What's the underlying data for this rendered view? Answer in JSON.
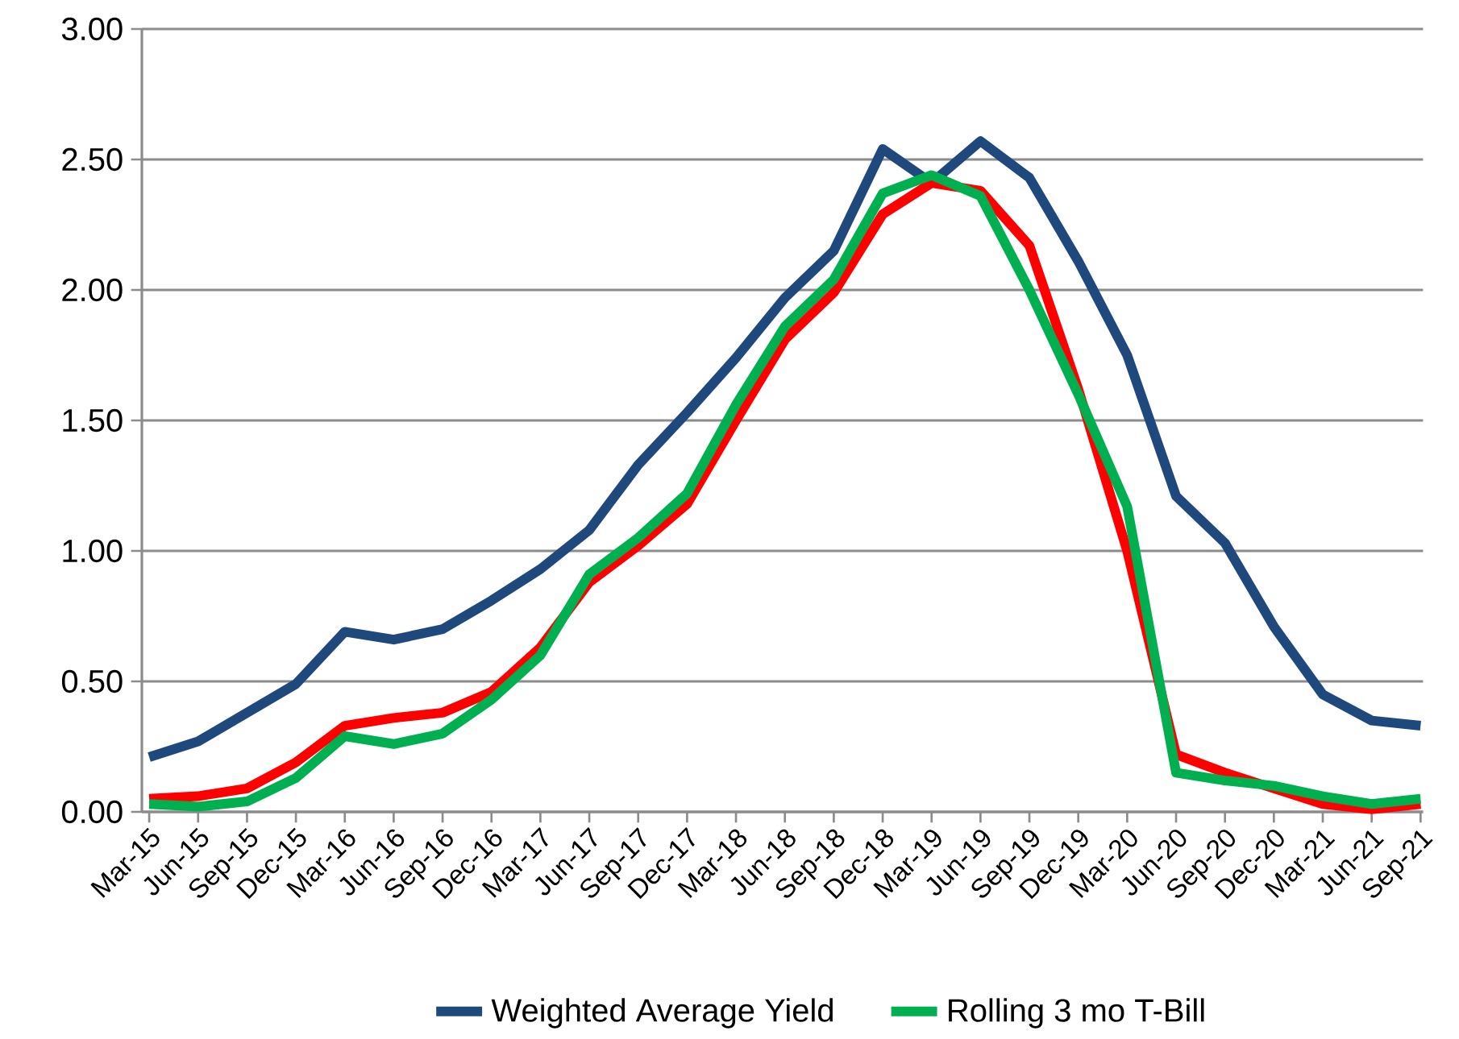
{
  "chart_data": {
    "type": "line",
    "categories": [
      "Mar-15",
      "Jun-15",
      "Sep-15",
      "Dec-15",
      "Mar-16",
      "Jun-16",
      "Sep-16",
      "Dec-16",
      "Mar-17",
      "Jun-17",
      "Sep-17",
      "Dec-17",
      "Mar-18",
      "Jun-18",
      "Sep-18",
      "Dec-18",
      "Mar-19",
      "Jun-19",
      "Sep-19",
      "Dec-19",
      "Mar-20",
      "Jun-20",
      "Sep-20",
      "Dec-20",
      "Mar-21",
      "Jun-21",
      "Sep-21"
    ],
    "series": [
      {
        "name": "Weighted Average Yield",
        "color": "#1f497d",
        "values": [
          0.21,
          0.27,
          0.38,
          0.49,
          0.69,
          0.66,
          0.7,
          0.81,
          0.93,
          1.08,
          1.33,
          1.53,
          1.74,
          1.97,
          2.15,
          2.54,
          2.41,
          2.57,
          2.43,
          2.11,
          1.75,
          1.21,
          1.03,
          0.71,
          0.45,
          0.35,
          0.33
        ]
      },
      {
        "color": "#ff0000",
        "values": [
          0.05,
          0.06,
          0.09,
          0.19,
          0.33,
          0.36,
          0.38,
          0.46,
          0.63,
          0.88,
          1.02,
          1.18,
          1.5,
          1.81,
          1.99,
          2.29,
          2.41,
          2.38,
          2.17,
          1.62,
          1.0,
          0.22,
          0.15,
          0.09,
          0.03,
          0.01,
          0.03
        ]
      },
      {
        "name": "Rolling 3 mo T-Bill",
        "color": "#00b050",
        "values": [
          0.03,
          0.02,
          0.04,
          0.13,
          0.29,
          0.26,
          0.3,
          0.43,
          0.6,
          0.91,
          1.05,
          1.22,
          1.56,
          1.86,
          2.04,
          2.37,
          2.44,
          2.36,
          2.0,
          1.6,
          1.17,
          0.15,
          0.12,
          0.1,
          0.06,
          0.03,
          0.05
        ]
      }
    ],
    "ylim": [
      0,
      3
    ],
    "yticks": [
      {
        "value": 0,
        "label": "0.00"
      },
      {
        "value": 0.5,
        "label": "0.50"
      },
      {
        "value": 1,
        "label": "1.00"
      },
      {
        "value": 1.5,
        "label": "1.50"
      },
      {
        "value": 2,
        "label": "2.00"
      },
      {
        "value": 2.5,
        "label": "2.50"
      },
      {
        "value": 3,
        "label": "3.00"
      }
    ],
    "grid": "y",
    "legend": "bottom",
    "marker": "none",
    "line_style": "solid"
  }
}
